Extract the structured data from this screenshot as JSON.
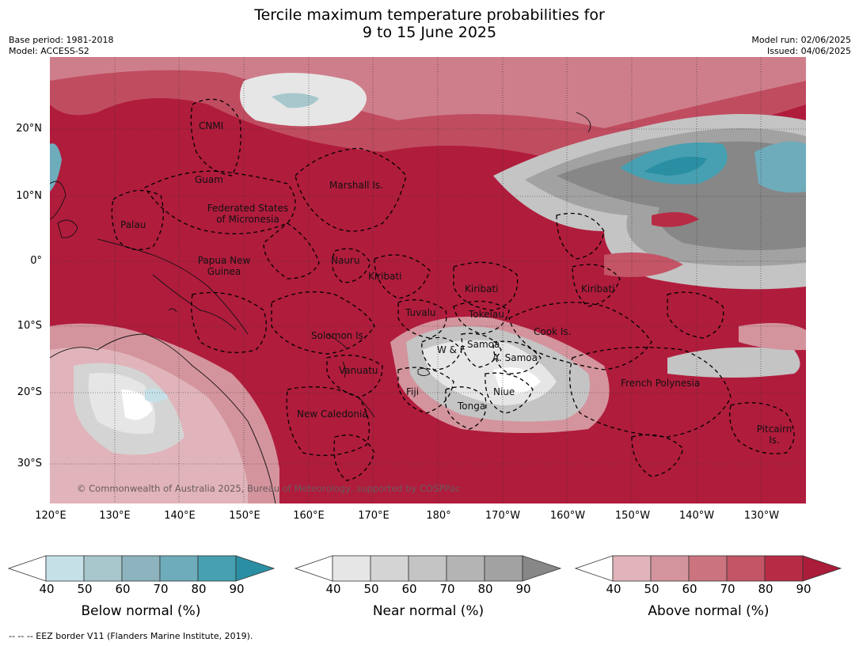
{
  "title": {
    "line1": "Tercile maximum temperature probabilities for",
    "line2": "9 to 15 June 2025"
  },
  "meta": {
    "base_period": "Base period: 1981-2018",
    "model": "Model: ACCESS-S2",
    "model_run": "Model run: 02/06/2025",
    "issued": "Issued: 04/06/2025"
  },
  "axes": {
    "lat_labels": [
      "20°N",
      "10°N",
      "0°",
      "10°S",
      "20°S",
      "30°S"
    ],
    "lon_labels": [
      "120°E",
      "130°E",
      "140°E",
      "150°E",
      "160°E",
      "170°E",
      "180°",
      "170°W",
      "160°W",
      "150°W",
      "140°W",
      "130°W"
    ]
  },
  "regions": {
    "cnmi": "CNMI",
    "guam": "Guam",
    "marshall": "Marshall Is.",
    "palau": "Palau",
    "fsm1": "Federated States",
    "fsm2": "of Micronesia",
    "png1": "Papua New",
    "png2": "Guinea",
    "nauru": "Nauru",
    "kiribati_w": "Kiribati",
    "kiribati_c": "Kiribati",
    "kiribati_e": "Kiribati",
    "tuvalu": "Tuvalu",
    "tokelau": "Tokelau",
    "cook": "Cook Is.",
    "solomon": "Solomon Is.",
    "wf": "W & F",
    "samoa": "Samoa",
    "asamoa": "A. Samoa",
    "vanuatu": "Vanuatu",
    "fiji": "Fiji",
    "niue": "Niue",
    "tonga": "Tonga",
    "french_polynesia": "French Polynesia",
    "new_caledonia": "New Caledonia",
    "pitcairn1": "Pitcairn",
    "pitcairn2": "Is."
  },
  "copyright": "© Commonwealth of Australia 2025, Bureau of Meteorology, supported by COSPPac",
  "colorbars": [
    {
      "title": "Below normal (%)",
      "ticks": [
        "40",
        "50",
        "60",
        "70",
        "80",
        "90"
      ],
      "colors": [
        "#c6e0e8",
        "#a7c7cc",
        "#8db4be",
        "#6eacbb",
        "#47a0b1",
        "#2a8fa3"
      ]
    },
    {
      "title": "Near normal (%)",
      "ticks": [
        "40",
        "50",
        "60",
        "70",
        "80",
        "90"
      ],
      "colors": [
        "#e6e6e6",
        "#d4d4d4",
        "#c4c4c4",
        "#b4b4b4",
        "#a2a2a2",
        "#878787"
      ]
    },
    {
      "title": "Above normal (%)",
      "ticks": [
        "40",
        "50",
        "60",
        "70",
        "80",
        "90"
      ],
      "colors": [
        "#e0b4ba",
        "#d4949d",
        "#cb747f",
        "#c35566",
        "#b82b45",
        "#ab1b3a"
      ]
    }
  ],
  "footer": "--  --  -- EEZ border V11 (Flanders Marine Institute, 2019)."
}
